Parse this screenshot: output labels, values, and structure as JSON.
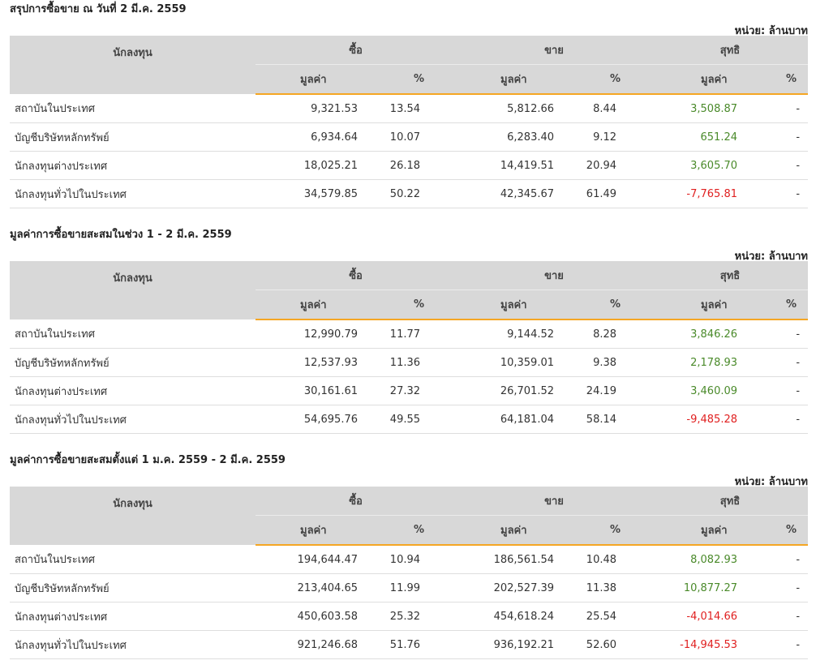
{
  "headers": {
    "investor": "นักลงทุน",
    "buy": "ซื้อ",
    "sell": "ขาย",
    "net": "สุทธิ",
    "value": "มูลค่า",
    "percent": "%"
  },
  "sections": [
    {
      "title": "สรุปการซื้อขาย ณ วันที่ 2 มี.ค. 2559",
      "unit": "หน่วย: ล้านบาท",
      "rows": [
        {
          "name": "สถาบันในประเทศ",
          "buy_value": "9,321.53",
          "buy_pct": "13.54",
          "sell_value": "5,812.66",
          "sell_pct": "8.44",
          "net_value": "3,508.87",
          "net_pct": "-",
          "net_sign": "pos"
        },
        {
          "name": "บัญชีบริษัทหลักทรัพย์",
          "buy_value": "6,934.64",
          "buy_pct": "10.07",
          "sell_value": "6,283.40",
          "sell_pct": "9.12",
          "net_value": "651.24",
          "net_pct": "-",
          "net_sign": "pos"
        },
        {
          "name": "นักลงทุนต่างประเทศ",
          "buy_value": "18,025.21",
          "buy_pct": "26.18",
          "sell_value": "14,419.51",
          "sell_pct": "20.94",
          "net_value": "3,605.70",
          "net_pct": "-",
          "net_sign": "pos"
        },
        {
          "name": "นักลงทุนทั่วไปในประเทศ",
          "buy_value": "34,579.85",
          "buy_pct": "50.22",
          "sell_value": "42,345.67",
          "sell_pct": "61.49",
          "net_value": "-7,765.81",
          "net_pct": "-",
          "net_sign": "neg"
        }
      ]
    },
    {
      "title": "มูลค่าการซื้อขายสะสมในช่วง 1 - 2 มี.ค. 2559",
      "unit": "หน่วย: ล้านบาท",
      "rows": [
        {
          "name": "สถาบันในประเทศ",
          "buy_value": "12,990.79",
          "buy_pct": "11.77",
          "sell_value": "9,144.52",
          "sell_pct": "8.28",
          "net_value": "3,846.26",
          "net_pct": "-",
          "net_sign": "pos"
        },
        {
          "name": "บัญชีบริษัทหลักทรัพย์",
          "buy_value": "12,537.93",
          "buy_pct": "11.36",
          "sell_value": "10,359.01",
          "sell_pct": "9.38",
          "net_value": "2,178.93",
          "net_pct": "-",
          "net_sign": "pos"
        },
        {
          "name": "นักลงทุนต่างประเทศ",
          "buy_value": "30,161.61",
          "buy_pct": "27.32",
          "sell_value": "26,701.52",
          "sell_pct": "24.19",
          "net_value": "3,460.09",
          "net_pct": "-",
          "net_sign": "pos"
        },
        {
          "name": "นักลงทุนทั่วไปในประเทศ",
          "buy_value": "54,695.76",
          "buy_pct": "49.55",
          "sell_value": "64,181.04",
          "sell_pct": "58.14",
          "net_value": "-9,485.28",
          "net_pct": "-",
          "net_sign": "neg"
        }
      ]
    },
    {
      "title": "มูลค่าการซื้อขายสะสมตั้งแต่ 1 ม.ค. 2559 - 2 มี.ค. 2559",
      "unit": "หน่วย: ล้านบาท",
      "rows": [
        {
          "name": "สถาบันในประเทศ",
          "buy_value": "194,644.47",
          "buy_pct": "10.94",
          "sell_value": "186,561.54",
          "sell_pct": "10.48",
          "net_value": "8,082.93",
          "net_pct": "-",
          "net_sign": "pos"
        },
        {
          "name": "บัญชีบริษัทหลักทรัพย์",
          "buy_value": "213,404.65",
          "buy_pct": "11.99",
          "sell_value": "202,527.39",
          "sell_pct": "11.38",
          "net_value": "10,877.27",
          "net_pct": "-",
          "net_sign": "pos"
        },
        {
          "name": "นักลงทุนต่างประเทศ",
          "buy_value": "450,603.58",
          "buy_pct": "25.32",
          "sell_value": "454,618.24",
          "sell_pct": "25.54",
          "net_value": "-4,014.66",
          "net_pct": "-",
          "net_sign": "neg"
        },
        {
          "name": "นักลงทุนทั่วไปในประเทศ",
          "buy_value": "921,246.68",
          "buy_pct": "51.76",
          "sell_value": "936,192.21",
          "sell_pct": "52.60",
          "net_value": "-14,945.53",
          "net_pct": "-",
          "net_sign": "neg"
        }
      ]
    }
  ],
  "colors": {
    "header_bg": "#d8d8d8",
    "accent_line": "#f5a623",
    "net_positive": "#4a8a2a",
    "net_negative": "#e02020"
  }
}
